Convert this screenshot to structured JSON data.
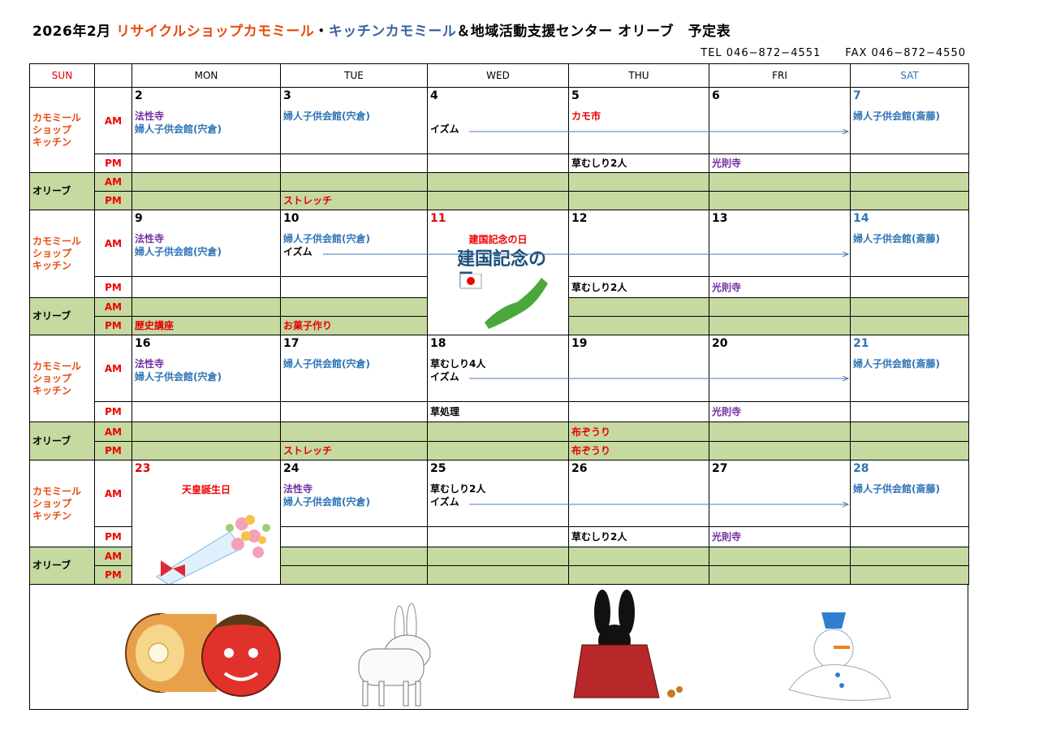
{
  "header": {
    "title_parts": [
      {
        "text": "2026年2月 ",
        "color": "#000000"
      },
      {
        "text": "リサイクルショップカモミール",
        "color": "#e84b10"
      },
      {
        "text": "・",
        "color": "#000000"
      },
      {
        "text": "キッチンカモミール",
        "color": "#3a62a0"
      },
      {
        "text": "＆地域活動支援センター オリーブ　予定表",
        "color": "#000000"
      }
    ],
    "tel": "TEL 046−872−4551",
    "fax": "FAX 046−872−4550"
  },
  "colors": {
    "purple": "#7030a0",
    "blue": "#2e75b6",
    "red": "#e60000",
    "black": "#000000",
    "olive_bg": "#c5d9a0",
    "sat": "#2e75b6"
  },
  "days_header": [
    {
      "label": "SUN",
      "color": "#e60000"
    },
    {
      "label": "",
      "color": "#000000"
    },
    {
      "label": "MON",
      "color": "#000000"
    },
    {
      "label": "TUE",
      "color": "#000000"
    },
    {
      "label": "WED",
      "color": "#000000"
    },
    {
      "label": "THU",
      "color": "#000000"
    },
    {
      "label": "FRI",
      "color": "#000000"
    },
    {
      "label": "SAT",
      "color": "#2e75b6"
    }
  ],
  "row_labels": {
    "kamo": "カモミール\nショップ\nキッチン",
    "olive": "オリーブ",
    "am": "AM",
    "pm": "PM"
  },
  "weeks": [
    {
      "days": [
        {
          "date": "2",
          "am": [
            {
              "text": "法性寺",
              "c": "purple"
            },
            {
              "text": "婦人子供会館(宍倉)",
              "c": "blue"
            }
          ],
          "pm": [],
          "oam": [],
          "opm": []
        },
        {
          "date": "3",
          "am": [
            {
              "text": "婦人子供会館(宍倉)",
              "c": "blue"
            }
          ],
          "pm": [],
          "oam": [],
          "opm": [
            {
              "text": "ストレッチ",
              "c": "red"
            }
          ]
        },
        {
          "date": "4",
          "am": [
            {
              "text": "",
              "c": "black"
            },
            {
              "text": "イズム",
              "c": "black"
            }
          ],
          "pm": [],
          "oam": [],
          "opm": [],
          "opm_struck": true
        },
        {
          "date": "5",
          "am": [
            {
              "text": "カモ市",
              "c": "red"
            }
          ],
          "pm": [
            {
              "text": "草むしり2人",
              "c": "black"
            }
          ],
          "oam": [],
          "opm": []
        },
        {
          "date": "6",
          "am": [],
          "pm": [
            {
              "text": "光則寺",
              "c": "purple"
            }
          ],
          "oam": [],
          "opm": []
        },
        {
          "date": "7",
          "date_color": "sat",
          "am": [
            {
              "text": "婦人子供会館(斎藤)",
              "c": "blue"
            }
          ],
          "pm": [],
          "oam": [],
          "opm": [],
          "oam_struck": true,
          "opm_struck": true
        }
      ]
    },
    {
      "days": [
        {
          "date": "9",
          "am": [
            {
              "text": "法性寺",
              "c": "purple"
            },
            {
              "text": "婦人子供会館(宍倉)",
              "c": "blue"
            }
          ],
          "pm": [],
          "oam": [],
          "opm": [
            {
              "text": "歴史講座",
              "c": "red"
            }
          ]
        },
        {
          "date": "10",
          "am": [
            {
              "text": "婦人子供会館(宍倉)",
              "c": "blue"
            },
            {
              "text": "イズム",
              "c": "black"
            }
          ],
          "pm": [],
          "oam": [],
          "opm": [
            {
              "text": "お菓子作り",
              "c": "red"
            }
          ]
        },
        {
          "date": "11",
          "date_color": "red",
          "holiday": "建国記念の日",
          "holiday_art": "建国記念の日",
          "merged": true
        },
        {
          "date": "12",
          "am": [],
          "pm": [
            {
              "text": "草むしり2人",
              "c": "black"
            }
          ],
          "oam": [],
          "opm": []
        },
        {
          "date": "13",
          "am": [],
          "pm": [
            {
              "text": "光則寺",
              "c": "purple"
            }
          ],
          "oam": [],
          "opm": []
        },
        {
          "date": "14",
          "date_color": "sat",
          "am": [
            {
              "text": "婦人子供会館(斎藤)",
              "c": "blue"
            }
          ],
          "pm": [],
          "oam": [],
          "opm": [],
          "oam_struck": true,
          "opm_struck": true
        }
      ]
    },
    {
      "days": [
        {
          "date": "16",
          "am": [
            {
              "text": "法性寺",
              "c": "purple"
            },
            {
              "text": "婦人子供会館(宍倉)",
              "c": "blue"
            }
          ],
          "pm": [],
          "oam": [],
          "opm": []
        },
        {
          "date": "17",
          "am": [
            {
              "text": "婦人子供会館(宍倉)",
              "c": "blue"
            }
          ],
          "pm": [],
          "oam": [],
          "opm": [
            {
              "text": "ストレッチ",
              "c": "red"
            }
          ]
        },
        {
          "date": "18",
          "am": [
            {
              "text": "草むしり4人",
              "c": "black"
            },
            {
              "text": "イズム",
              "c": "black"
            }
          ],
          "pm": [
            {
              "text": "草処理",
              "c": "black"
            }
          ],
          "oam": [],
          "opm": [],
          "opm_struck": true
        },
        {
          "date": "19",
          "am": [],
          "pm": [],
          "oam": [
            {
              "text": "布ぞうり",
              "c": "red"
            }
          ],
          "opm": [
            {
              "text": "布ぞうり",
              "c": "red"
            }
          ]
        },
        {
          "date": "20",
          "am": [],
          "pm": [
            {
              "text": "光則寺",
              "c": "purple"
            }
          ],
          "oam": [],
          "opm": []
        },
        {
          "date": "21",
          "date_color": "sat",
          "am": [
            {
              "text": "婦人子供会館(斎藤)",
              "c": "blue"
            }
          ],
          "pm": [],
          "oam": [],
          "opm": [],
          "oam_struck": true,
          "opm_struck": true
        }
      ]
    },
    {
      "days": [
        {
          "date": "23",
          "date_color": "red",
          "holiday": "天皇誕生日",
          "merged": true
        },
        {
          "date": "24",
          "am": [
            {
              "text": "法性寺",
              "c": "purple"
            },
            {
              "text": "婦人子供会館(宍倉)",
              "c": "blue"
            }
          ],
          "pm": [],
          "oam": [],
          "opm": []
        },
        {
          "date": "25",
          "am": [
            {
              "text": "草むしり2人",
              "c": "black"
            },
            {
              "text": "イズム",
              "c": "black"
            }
          ],
          "pm": [],
          "oam": [],
          "opm": [],
          "opm_struck": true
        },
        {
          "date": "26",
          "am": [],
          "pm": [
            {
              "text": "草むしり2人",
              "c": "black"
            }
          ],
          "oam": [],
          "opm": []
        },
        {
          "date": "27",
          "am": [],
          "pm": [
            {
              "text": "光則寺",
              "c": "purple"
            }
          ],
          "oam": [],
          "opm": []
        },
        {
          "date": "28",
          "date_color": "sat",
          "am": [
            {
              "text": "婦人子供会館(斎藤)",
              "c": "blue"
            }
          ],
          "pm": [],
          "oam": [],
          "opm": [],
          "oam_struck": true,
          "opm_struck": true
        }
      ]
    }
  ],
  "illustrations": [
    "roll-cake-and-red-oni",
    "white-hare",
    "black-rabbit-with-furoshiki",
    "melting-snowman"
  ]
}
